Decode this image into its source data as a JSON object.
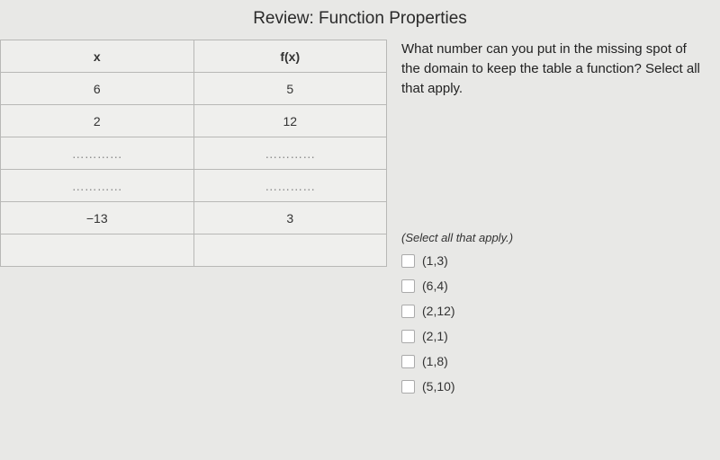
{
  "title": "Review: Function Properties",
  "table": {
    "headers": {
      "x": "x",
      "fx": "f(x)"
    },
    "rows": [
      {
        "x": "6",
        "fx": "5"
      },
      {
        "x": "2",
        "fx": "12"
      },
      {
        "x": "…………",
        "fx": "…………"
      },
      {
        "x": "…………",
        "fx": "…………"
      },
      {
        "x": "−13",
        "fx": "3"
      },
      {
        "x": "",
        "fx": ""
      }
    ]
  },
  "question": "What number can you put in the missing spot of the domain to keep the table a function? Select all that apply.",
  "instruction": "(Select all that apply.)",
  "options": [
    "(1,3)",
    "(6,4)",
    "(2,12)",
    "(2,1)",
    "(1,8)",
    "(5,10)"
  ],
  "colors": {
    "background": "#e8e8e6",
    "table_border": "#b8b8b6",
    "text": "#333333"
  }
}
